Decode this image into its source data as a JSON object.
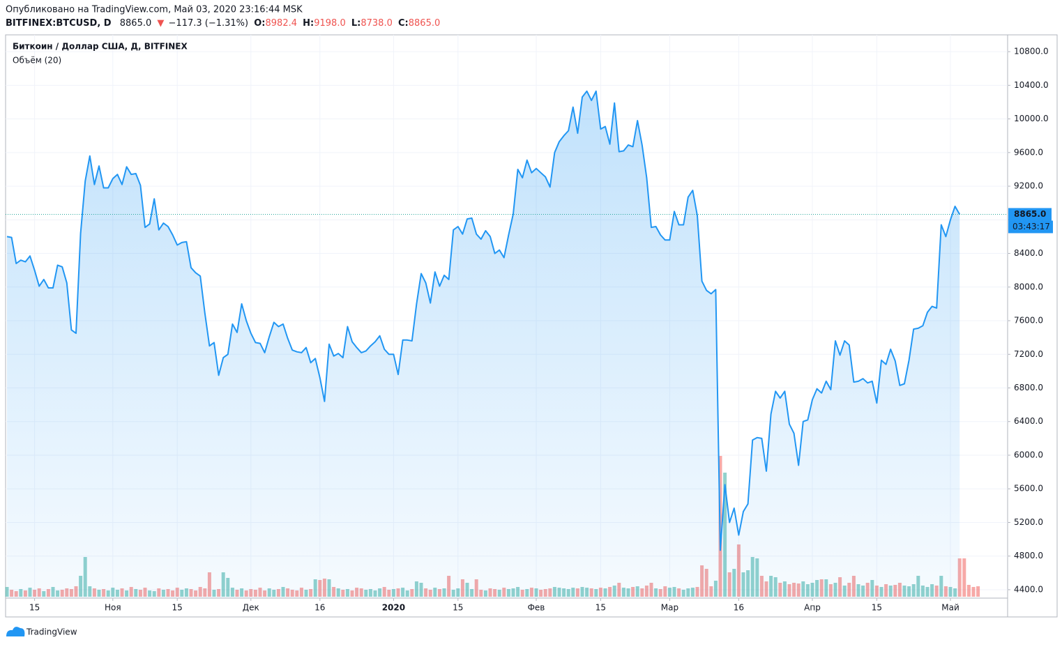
{
  "header": {
    "published": "Опубликовано на TradingView.com, Май 03, 2020 23:16:44 MSK",
    "symbol": "BITFINEX:BTCUSD, D",
    "last": "8865.0",
    "arrow": "▼",
    "change": "−117.3 (−1.31%)",
    "open_label": "O:",
    "open": "8982.4",
    "high_label": "H:",
    "high": "9198.0",
    "low_label": "L:",
    "low": "8738.0",
    "close_label": "C:",
    "close": "8865.0"
  },
  "chart_data": {
    "type": "area",
    "title": "Биткоин / Доллар США, Д, BITFINEX",
    "color": "#2196f3",
    "values": [
      8600,
      8590,
      8280,
      8320,
      8300,
      8370,
      8200,
      8010,
      8090,
      7990,
      7990,
      8260,
      8240,
      8050,
      7490,
      7450,
      8640,
      9260,
      9560,
      9220,
      9440,
      9180,
      9180,
      9290,
      9340,
      9220,
      9430,
      9340,
      9350,
      9210,
      8710,
      8750,
      9050,
      8680,
      8760,
      8720,
      8620,
      8500,
      8530,
      8540,
      8230,
      8170,
      8130,
      7690,
      7300,
      7340,
      6950,
      7160,
      7200,
      7560,
      7460,
      7800,
      7600,
      7450,
      7340,
      7330,
      7220,
      7410,
      7580,
      7530,
      7560,
      7390,
      7250,
      7230,
      7220,
      7280,
      7100,
      7150,
      6920,
      6640,
      7320,
      7180,
      7210,
      7160,
      7530,
      7350,
      7280,
      7220,
      7240,
      7300,
      7350,
      7420,
      7260,
      7200,
      7200,
      6960,
      7370,
      7370,
      7360,
      7800,
      8160,
      8050,
      7810,
      8180,
      8010,
      8140,
      8090,
      8680,
      8720,
      8630,
      8810,
      8820,
      8630,
      8570,
      8670,
      8600,
      8400,
      8440,
      8350,
      8620,
      8870,
      9400,
      9300,
      9510,
      9360,
      9410,
      9360,
      9310,
      9190,
      9600,
      9730,
      9800,
      9860,
      10140,
      9830,
      10260,
      10330,
      10220,
      10330,
      9880,
      9910,
      9700,
      10190,
      9610,
      9620,
      9690,
      9670,
      9980,
      9690,
      9300,
      8710,
      8720,
      8620,
      8560,
      8560,
      8900,
      8740,
      8740,
      9070,
      9150,
      8850,
      8070,
      7960,
      7920,
      7970,
      4870,
      5650,
      5200,
      5370,
      5050,
      5330,
      5420,
      6180,
      6210,
      6200,
      5810,
      6490,
      6760,
      6680,
      6760,
      6370,
      6260,
      5880,
      6400,
      6420,
      6660,
      6790,
      6740,
      6880,
      6780,
      7360,
      7190,
      7360,
      7310,
      6870,
      6880,
      6910,
      6860,
      6880,
      6620,
      7130,
      7080,
      7260,
      7120,
      6830,
      6850,
      7130,
      7500,
      7510,
      7540,
      7700,
      7770,
      7750,
      8740,
      8600,
      8800,
      8960,
      8865
    ],
    "ylim": [
      4300,
      11000
    ],
    "yticks": [
      {
        "value": 4400,
        "label": "4400.0"
      },
      {
        "value": 4800,
        "label": "4800.0"
      },
      {
        "value": 5200,
        "label": "5200.0"
      },
      {
        "value": 5600,
        "label": "5600.0"
      },
      {
        "value": 6000,
        "label": "6000.0"
      },
      {
        "value": 6400,
        "label": "6400.0"
      },
      {
        "value": 6800,
        "label": "6800.0"
      },
      {
        "value": 7200,
        "label": "7200.0"
      },
      {
        "value": 7600,
        "label": "7600.0"
      },
      {
        "value": 8000,
        "label": "8000.0"
      },
      {
        "value": 8400,
        "label": "8400.0"
      },
      {
        "value": 8800,
        "label": "8800.0"
      },
      {
        "value": 9200,
        "label": "9200.0"
      },
      {
        "value": 9600,
        "label": "9600.0"
      },
      {
        "value": 10000,
        "label": "10000.0"
      },
      {
        "value": 10400,
        "label": "10400.0"
      },
      {
        "value": 10800,
        "label": "10800.0"
      }
    ],
    "xticks": [
      {
        "value": 6,
        "label": "15"
      },
      {
        "value": 23,
        "label": "Ноя"
      },
      {
        "value": 37,
        "label": "15"
      },
      {
        "value": 53,
        "label": "Дек"
      },
      {
        "value": 68,
        "label": "16"
      },
      {
        "value": 84,
        "label": "2020"
      },
      {
        "value": 98,
        "label": "15"
      },
      {
        "value": 115,
        "label": "Фев"
      },
      {
        "value": 129,
        "label": "15"
      },
      {
        "value": 144,
        "label": "Мар"
      },
      {
        "value": 159,
        "label": "16"
      },
      {
        "value": 175,
        "label": "Апр"
      },
      {
        "value": 189,
        "label": "15"
      },
      {
        "value": 205,
        "label": "Май"
      }
    ],
    "grid": true,
    "last_price": {
      "value": 8865,
      "label": "8865.0",
      "countdown": "03:43:17",
      "color": "#2196f3"
    },
    "volume": {
      "name": "Объём (20)",
      "up_color": "rgba(38,166,154,0.5)",
      "down_color": "rgba(239,83,80,0.5)",
      "values": [
        14,
        10,
        8,
        11,
        9,
        13,
        10,
        12,
        8,
        11,
        14,
        9,
        10,
        12,
        11,
        15,
        30,
        57,
        15,
        12,
        10,
        11,
        9,
        13,
        10,
        12,
        9,
        14,
        11,
        10,
        13,
        9,
        8,
        12,
        10,
        11,
        9,
        13,
        10,
        12,
        11,
        9,
        14,
        12,
        35,
        10,
        11,
        35,
        27,
        13,
        10,
        12,
        9,
        11,
        10,
        13,
        9,
        12,
        10,
        11,
        14,
        12,
        10,
        9,
        13,
        10,
        11,
        25,
        24,
        26,
        25,
        14,
        12,
        10,
        11,
        9,
        13,
        12,
        10,
        11,
        9,
        12,
        14,
        10,
        11,
        12,
        13,
        9,
        11,
        22,
        20,
        12,
        10,
        13,
        11,
        12,
        30,
        10,
        12,
        25,
        20,
        11,
        25,
        10,
        9,
        12,
        11,
        10,
        13,
        11,
        12,
        14,
        10,
        11,
        13,
        12,
        10,
        11,
        12,
        14,
        13,
        12,
        11,
        13,
        12,
        14,
        13,
        12,
        11,
        13,
        12,
        14,
        16,
        20,
        13,
        12,
        14,
        15,
        12,
        16,
        20,
        12,
        11,
        15,
        13,
        14,
        12,
        10,
        12,
        13,
        14,
        45,
        40,
        15,
        23,
        202,
        178,
        35,
        40,
        75,
        35,
        38,
        57,
        55,
        30,
        22,
        30,
        28,
        20,
        22,
        18,
        20,
        19,
        22,
        18,
        20,
        24,
        25,
        25,
        18,
        20,
        28,
        16,
        20,
        30,
        18,
        16,
        20,
        24,
        16,
        14,
        18,
        16,
        17,
        20,
        16,
        15,
        18,
        30,
        16,
        14,
        18,
        16,
        30,
        15,
        14,
        12,
        55,
        55,
        17,
        14,
        15
      ]
    }
  },
  "footer": {
    "brand": "TradingView"
  }
}
